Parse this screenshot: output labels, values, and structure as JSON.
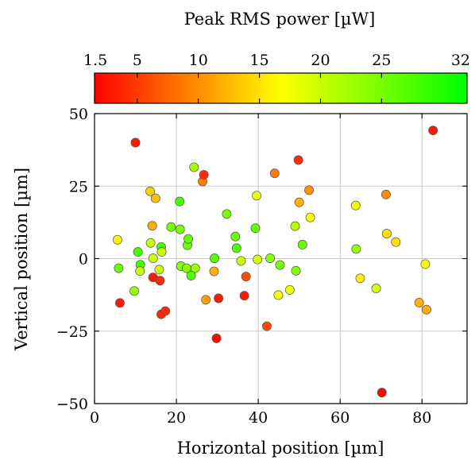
{
  "chart_data": {
    "type": "scatter",
    "xlabel": "Horizontal position [µm]",
    "ylabel": "Vertical position [µm]",
    "xlim": [
      0,
      91
    ],
    "ylim": [
      -50,
      50
    ],
    "x_ticks": [
      0,
      20,
      40,
      60,
      80
    ],
    "y_ticks": [
      -50,
      -25,
      0,
      25,
      50
    ],
    "grid": true,
    "colorbar": {
      "title": "Peak RMS power [µW]",
      "placement": "top",
      "range": [
        1.5,
        32
      ],
      "ticks": [
        1.5,
        5,
        10,
        15,
        20,
        25,
        32
      ],
      "tick_labels": [
        "1.5",
        "5",
        "10",
        "15",
        "20",
        "25",
        "32"
      ],
      "colormap": [
        "#ff0000",
        "#ffff00",
        "#00ff00"
      ]
    },
    "points": [
      {
        "x": 5.6,
        "y": 6.5,
        "value": 16
      },
      {
        "x": 5.9,
        "y": -3.3,
        "value": 26
      },
      {
        "x": 6.2,
        "y": -15.3,
        "value": 3
      },
      {
        "x": 9.7,
        "y": -11.2,
        "value": 23
      },
      {
        "x": 10.0,
        "y": 40.0,
        "value": 3
      },
      {
        "x": 10.6,
        "y": 2.3,
        "value": 28
      },
      {
        "x": 11.2,
        "y": -2.1,
        "value": 28
      },
      {
        "x": 11.1,
        "y": -4.3,
        "value": 20
      },
      {
        "x": 13.6,
        "y": 23.2,
        "value": 14
      },
      {
        "x": 13.7,
        "y": 5.4,
        "value": 20
      },
      {
        "x": 14.1,
        "y": 11.3,
        "value": 12
      },
      {
        "x": 14.3,
        "y": 0.1,
        "value": 20
      },
      {
        "x": 14.3,
        "y": -6.5,
        "value": 3
      },
      {
        "x": 14.9,
        "y": 20.8,
        "value": 13
      },
      {
        "x": 15.8,
        "y": -3.8,
        "value": 20
      },
      {
        "x": 16.0,
        "y": -7.6,
        "value": 4
      },
      {
        "x": 16.3,
        "y": 4.0,
        "value": 28
      },
      {
        "x": 16.4,
        "y": 2.3,
        "value": 20
      },
      {
        "x": 16.3,
        "y": -19.2,
        "value": 4
      },
      {
        "x": 17.3,
        "y": -18.1,
        "value": 4
      },
      {
        "x": 18.7,
        "y": 10.9,
        "value": 25
      },
      {
        "x": 20.8,
        "y": 19.7,
        "value": 28
      },
      {
        "x": 20.9,
        "y": 10.1,
        "value": 25
      },
      {
        "x": 21.1,
        "y": -2.6,
        "value": 24
      },
      {
        "x": 22.5,
        "y": -3.3,
        "value": 24
      },
      {
        "x": 22.7,
        "y": 4.6,
        "value": 26
      },
      {
        "x": 22.9,
        "y": 6.8,
        "value": 26
      },
      {
        "x": 23.6,
        "y": -5.9,
        "value": 27
      },
      {
        "x": 24.3,
        "y": 31.5,
        "value": 22
      },
      {
        "x": 24.6,
        "y": -3.3,
        "value": 23
      },
      {
        "x": 26.4,
        "y": 26.6,
        "value": 9
      },
      {
        "x": 26.7,
        "y": 28.9,
        "value": 4
      },
      {
        "x": 27.2,
        "y": -14.2,
        "value": 11
      },
      {
        "x": 29.2,
        "y": -4.4,
        "value": 12
      },
      {
        "x": 29.3,
        "y": 0.1,
        "value": 27
      },
      {
        "x": 29.8,
        "y": -27.5,
        "value": 2
      },
      {
        "x": 30.3,
        "y": -13.7,
        "value": 3
      },
      {
        "x": 32.3,
        "y": 15.4,
        "value": 25
      },
      {
        "x": 34.4,
        "y": 7.6,
        "value": 26
      },
      {
        "x": 34.7,
        "y": 3.6,
        "value": 27
      },
      {
        "x": 35.8,
        "y": -0.8,
        "value": 20
      },
      {
        "x": 36.6,
        "y": -12.8,
        "value": 3
      },
      {
        "x": 37.0,
        "y": -6.2,
        "value": 6
      },
      {
        "x": 39.3,
        "y": 10.5,
        "value": 26
      },
      {
        "x": 39.6,
        "y": 21.7,
        "value": 18
      },
      {
        "x": 39.8,
        "y": -0.3,
        "value": 19
      },
      {
        "x": 42.1,
        "y": -23.3,
        "value": 6
      },
      {
        "x": 42.9,
        "y": 0.1,
        "value": 24
      },
      {
        "x": 44.0,
        "y": 29.4,
        "value": 9
      },
      {
        "x": 44.9,
        "y": -12.6,
        "value": 17
      },
      {
        "x": 45.3,
        "y": -2.2,
        "value": 25
      },
      {
        "x": 47.7,
        "y": -10.8,
        "value": 18
      },
      {
        "x": 49.0,
        "y": 11.2,
        "value": 21
      },
      {
        "x": 49.2,
        "y": -4.2,
        "value": 24
      },
      {
        "x": 49.8,
        "y": 34.0,
        "value": 4
      },
      {
        "x": 50.0,
        "y": 19.4,
        "value": 12
      },
      {
        "x": 50.8,
        "y": 4.8,
        "value": 26
      },
      {
        "x": 52.4,
        "y": 23.6,
        "value": 10
      },
      {
        "x": 52.7,
        "y": 14.2,
        "value": 17
      },
      {
        "x": 63.8,
        "y": 18.3,
        "value": 18
      },
      {
        "x": 63.9,
        "y": 3.3,
        "value": 23
      },
      {
        "x": 64.9,
        "y": -6.8,
        "value": 16
      },
      {
        "x": 68.8,
        "y": -10.3,
        "value": 19
      },
      {
        "x": 70.2,
        "y": -46.2,
        "value": 2
      },
      {
        "x": 71.2,
        "y": 22.1,
        "value": 10
      },
      {
        "x": 71.4,
        "y": 8.6,
        "value": 15
      },
      {
        "x": 73.6,
        "y": 5.7,
        "value": 15
      },
      {
        "x": 79.3,
        "y": -15.2,
        "value": 12
      },
      {
        "x": 80.8,
        "y": -1.9,
        "value": 17
      },
      {
        "x": 81.1,
        "y": -17.6,
        "value": 12
      },
      {
        "x": 82.7,
        "y": 44.2,
        "value": 3
      }
    ]
  }
}
